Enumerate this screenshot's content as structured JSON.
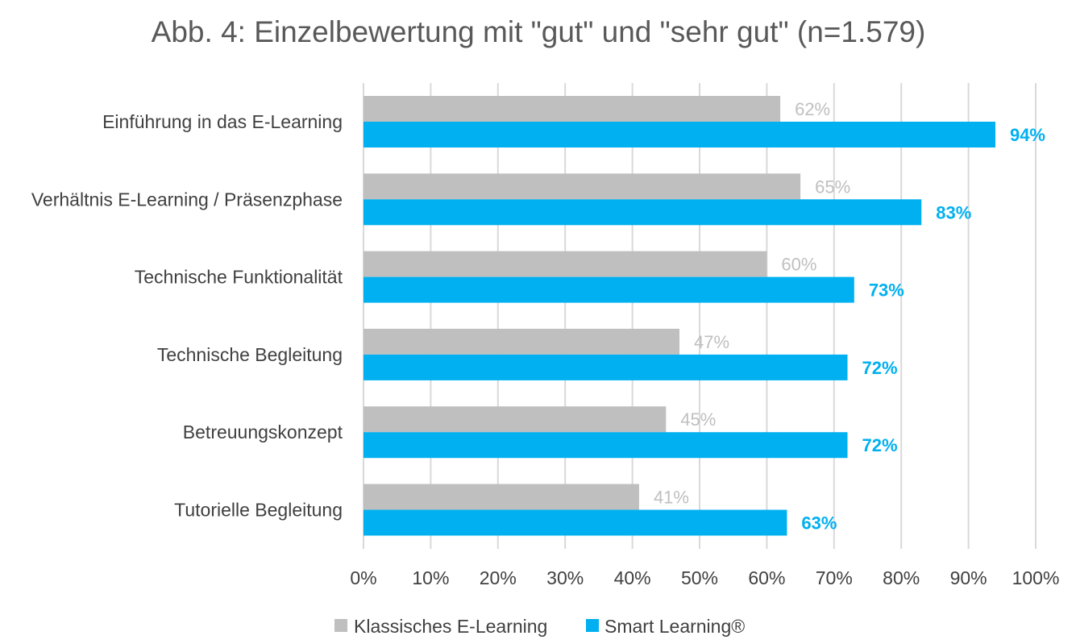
{
  "chart_data": {
    "type": "bar",
    "orientation": "horizontal",
    "title": "Abb. 4: Einzelbewertung mit \"gut\" und \"sehr gut\" (n=1.579)",
    "categories": [
      "Einführung in das E-Learning",
      "Verhältnis E-Learning / Präsenzphase",
      "Technische Funktionalität",
      "Technische Begleitung",
      "Betreuungskonzept",
      "Tutorielle Begleitung"
    ],
    "series": [
      {
        "name": "Klassisches E-Learning",
        "color": "#bfbfbf",
        "label_color": "#bfbfbf",
        "values": [
          62,
          65,
          60,
          47,
          45,
          41
        ],
        "labels": [
          "62%",
          "65%",
          "60%",
          "47%",
          "45%",
          "41%"
        ]
      },
      {
        "name": "Smart Learning®",
        "color": "#00b0f0",
        "label_color": "#00b0f0",
        "values": [
          94,
          83,
          73,
          72,
          72,
          63
        ],
        "labels": [
          "94%",
          "83%",
          "73%",
          "72%",
          "72%",
          "63%"
        ]
      }
    ],
    "xlim": [
      0,
      100
    ],
    "xticks": [
      "0%",
      "10%",
      "20%",
      "30%",
      "40%",
      "50%",
      "60%",
      "70%",
      "80%",
      "90%",
      "100%"
    ],
    "grid": true,
    "gridline_color": "#d9d9d9",
    "legend_position": "bottom"
  }
}
